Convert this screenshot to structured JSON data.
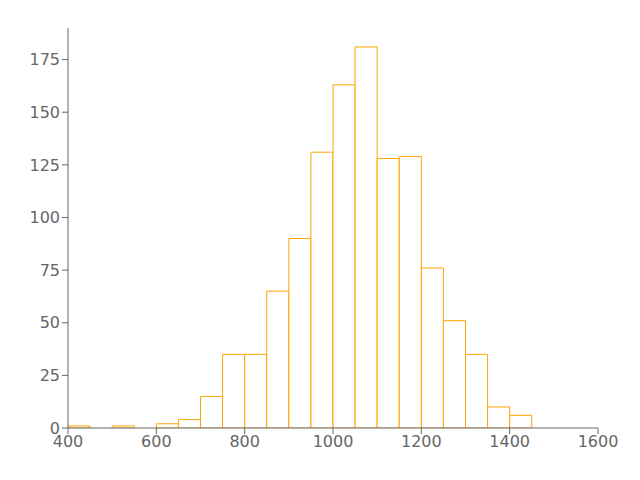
{
  "chart_data": {
    "type": "histogram",
    "bins": [
      400,
      450,
      500,
      550,
      600,
      650,
      700,
      750,
      800,
      850,
      900,
      950,
      1000,
      1050,
      1100,
      1150,
      1200,
      1250,
      1300,
      1350,
      1400,
      1450,
      1500,
      1550,
      1600
    ],
    "values": [
      1,
      0,
      1,
      0,
      2,
      4,
      15,
      35,
      35,
      65,
      90,
      131,
      163,
      181,
      128,
      129,
      76,
      51,
      35,
      10,
      6,
      0,
      0,
      0
    ],
    "color": "#FFA500",
    "xlim": [
      400,
      1600
    ],
    "ylim": [
      0,
      190
    ],
    "xticks": [
      400,
      600,
      800,
      1000,
      1200,
      1400,
      1600
    ],
    "yticks": [
      0,
      25,
      50,
      75,
      100,
      125,
      150,
      175
    ],
    "grid": false
  }
}
